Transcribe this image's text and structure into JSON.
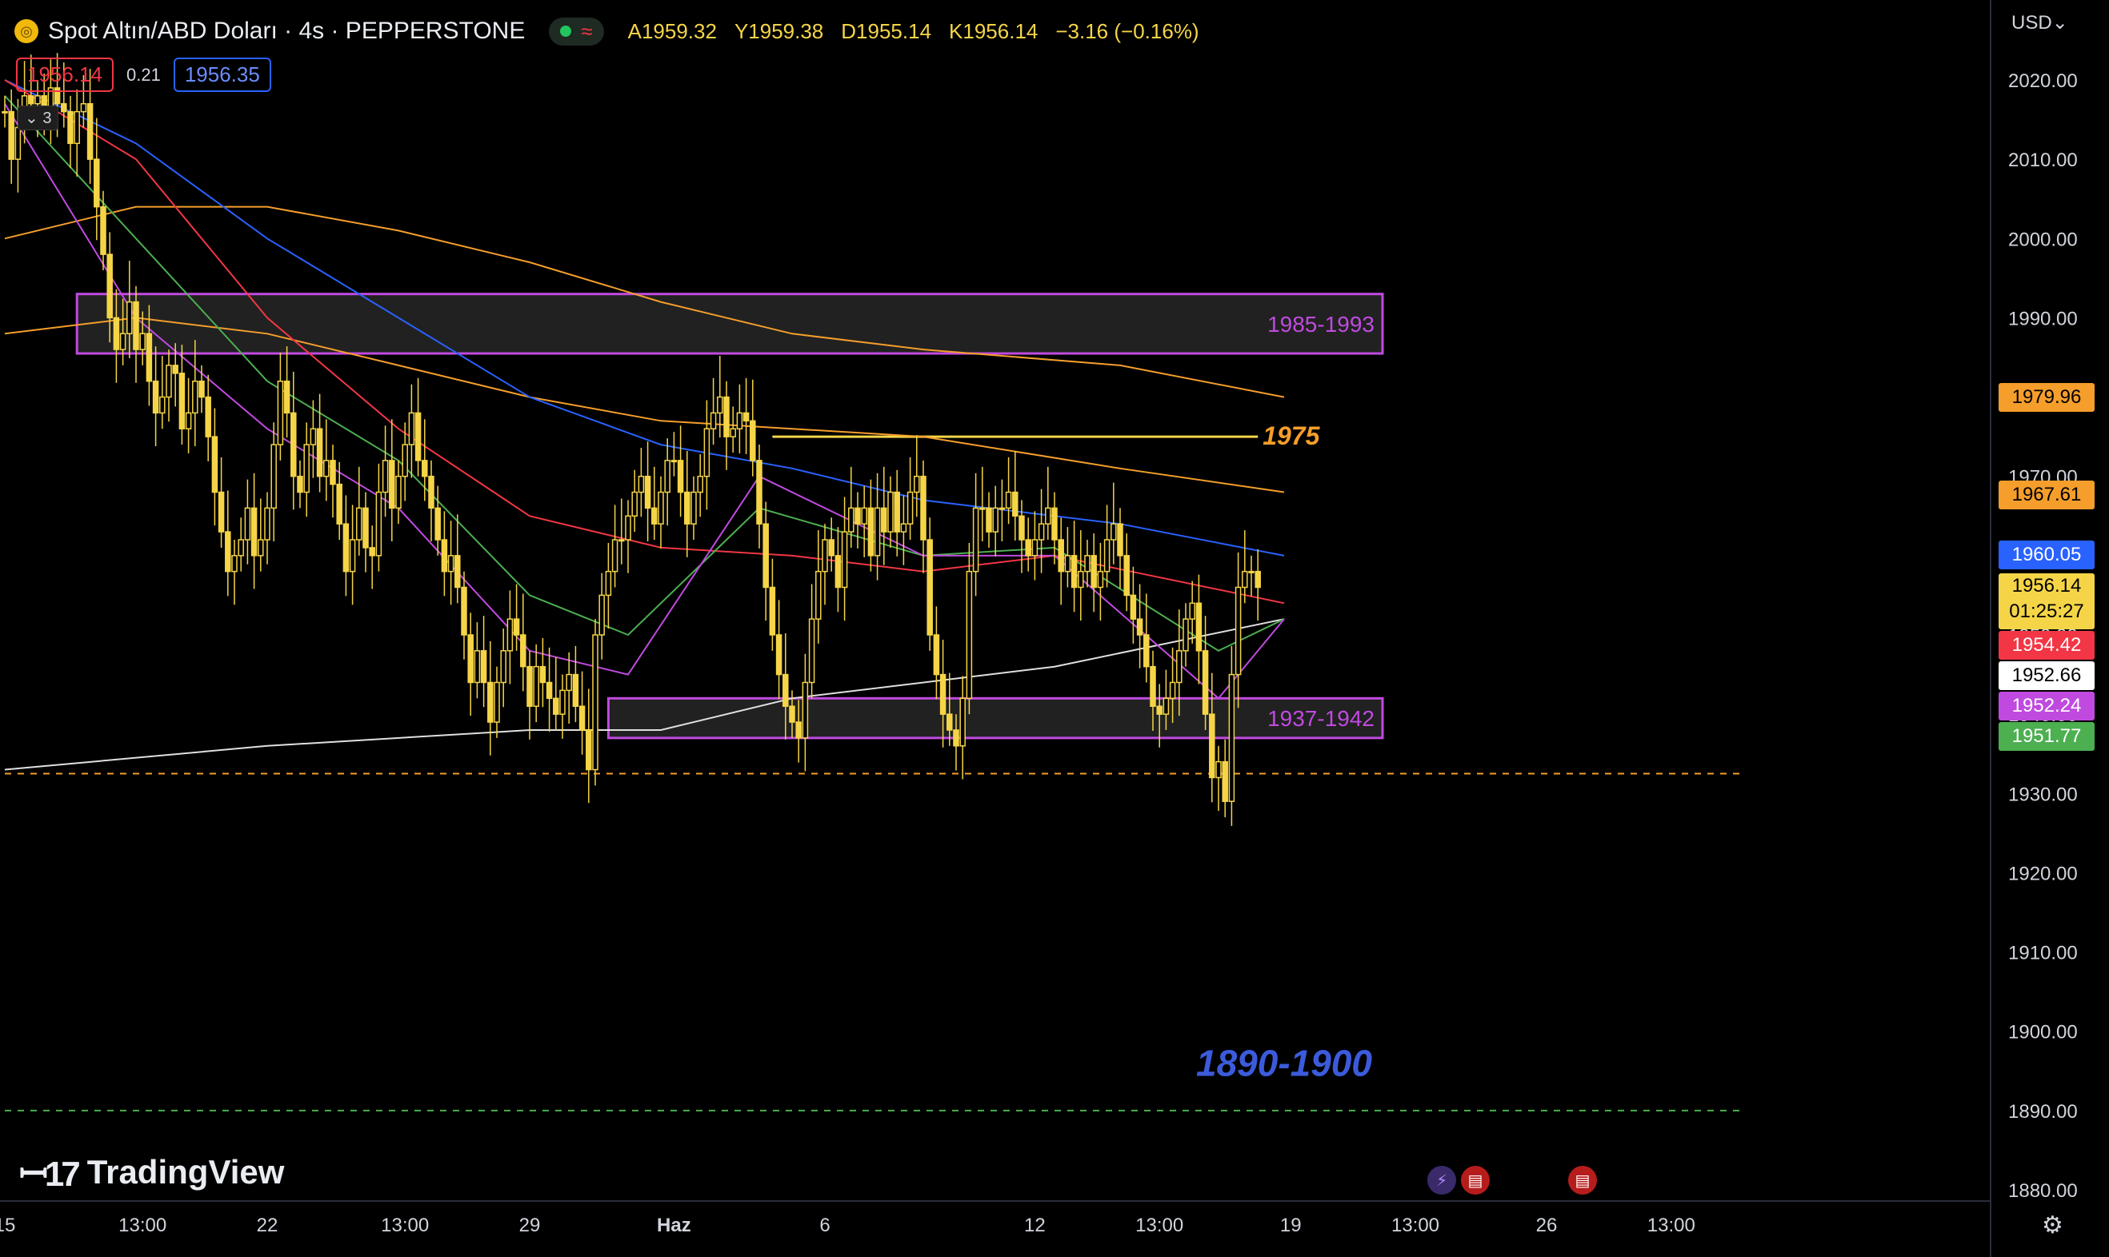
{
  "header": {
    "symbol": "Spot Altın/ABD Doları · 4s · PEPPERSTONE",
    "ohlc": [
      {
        "k": "A",
        "v": "1959.32"
      },
      {
        "k": "Y",
        "v": "1959.38"
      },
      {
        "k": "D",
        "v": "1955.14"
      },
      {
        "k": "K",
        "v": "1956.14"
      }
    ],
    "change": "−3.16 (−0.16%)",
    "bid": "1956.14",
    "spread": "0.21",
    "ask": "1956.35",
    "indicator_count": "3",
    "currency": "USD"
  },
  "brand": "TradingView",
  "price_labels": [
    {
      "value": 1979.96,
      "text": "1979.96",
      "bg": "#f59e2b",
      "fg": "#000000"
    },
    {
      "value": 1967.61,
      "text": "1967.61",
      "bg": "#f59e2b",
      "fg": "#000000"
    },
    {
      "value": 1960.05,
      "text": "1960.05",
      "bg": "#2962ff",
      "fg": "#ffffff"
    },
    {
      "value": 1956.14,
      "text": "1956.14",
      "sub": "01:25:27",
      "bg": "#f5d547",
      "fg": "#000000"
    },
    {
      "value": 1954.42,
      "text": "1954.42",
      "bg": "#f23645",
      "fg": "#ffffff"
    },
    {
      "value": 1952.66,
      "text": "1952.66",
      "bg": "#ffffff",
      "fg": "#000000"
    },
    {
      "value": 1952.24,
      "text": "1952.24",
      "bg": "#c04ae0",
      "fg": "#ffffff"
    },
    {
      "value": 1951.77,
      "text": "1951.77",
      "bg": "#4caf50",
      "fg": "#ffffff"
    }
  ],
  "colors": {
    "candle": "#f5d547",
    "zone_border": "#c04ae0",
    "ema_blue": "#2962ff",
    "ema_red": "#f23645",
    "ema_green": "#4caf50",
    "ema_purple": "#c04ae0",
    "ema_orange": "#f59e2b",
    "ema_white": "#e0e0e0",
    "target": "#3b5bdb"
  },
  "icons": [
    "gold-coin-icon",
    "market-open-dot-icon",
    "wave-icon",
    "chevron-down-icon",
    "settings-icon",
    "flash-event-icon",
    "us-flag-icon"
  ],
  "chart_data": {
    "type": "candlestick",
    "timeframe": "4s",
    "ylim": [
      1878,
      2025
    ],
    "y_ticks": [
      1880,
      1890,
      1900,
      1910,
      1920,
      1930,
      1940,
      1950,
      1960,
      1970,
      1980,
      1990,
      2000,
      2010,
      2020
    ],
    "y_tick_labels": [
      "1880.00",
      "1890.00",
      "1900.00",
      "1910.00",
      "1920.00",
      "1930.00",
      "1940.00",
      "1950.00",
      "1960.00",
      "1970.00",
      "1980.00",
      "1990.00",
      "2000.00",
      "2010.00",
      "2020.00"
    ],
    "x_ticks": [
      {
        "label": "15",
        "bar": 0
      },
      {
        "label": "13:00",
        "bar": 21
      },
      {
        "label": "22",
        "bar": 40
      },
      {
        "label": "13:00",
        "bar": 61
      },
      {
        "label": "29",
        "bar": 80
      },
      {
        "label": "Haz",
        "bar": 102
      },
      {
        "label": "6",
        "bar": 125
      },
      {
        "label": "12",
        "bar": 157
      },
      {
        "label": "13:00",
        "bar": 176
      },
      {
        "label": "19",
        "bar": 196
      },
      {
        "label": "13:00",
        "bar": 215
      },
      {
        "label": "26",
        "bar": 235
      },
      {
        "label": "13:00",
        "bar": 254
      }
    ],
    "closes": [
      2016,
      2010,
      2014,
      2018,
      2017,
      2018,
      2015,
      2019,
      2017,
      2016,
      2012,
      2016,
      2017,
      2010,
      2004,
      1998,
      1990,
      1986,
      1988,
      1992,
      1986,
      1988,
      1982,
      1978,
      1980,
      1984,
      1983,
      1976,
      1978,
      1982,
      1980,
      1975,
      1968,
      1963,
      1958,
      1960,
      1962,
      1966,
      1960,
      1962,
      1966,
      1974,
      1982,
      1978,
      1970,
      1968,
      1974,
      1976,
      1970,
      1972,
      1969,
      1964,
      1958,
      1962,
      1966,
      1961,
      1960,
      1968,
      1972,
      1966,
      1970,
      1974,
      1978,
      1972,
      1970,
      1966,
      1962,
      1958,
      1960,
      1956,
      1950,
      1944,
      1948,
      1944,
      1939,
      1944,
      1948,
      1952,
      1950,
      1946,
      1941,
      1946,
      1944,
      1942,
      1940,
      1943,
      1945,
      1941,
      1938,
      1933,
      1950,
      1955,
      1958,
      1962,
      1962,
      1965,
      1968,
      1970,
      1966,
      1964,
      1968,
      1972,
      1972,
      1968,
      1964,
      1968,
      1970,
      1976,
      1978,
      1980,
      1975,
      1976,
      1978,
      1977,
      1972,
      1964,
      1956,
      1950,
      1945,
      1941,
      1939,
      1937,
      1944,
      1952,
      1958,
      1962,
      1960,
      1956,
      1963,
      1966,
      1964,
      1966,
      1960,
      1966,
      1963,
      1968,
      1963,
      1964,
      1968,
      1970,
      1962,
      1950,
      1945,
      1940,
      1938,
      1936,
      1942,
      1958,
      1966,
      1966,
      1963,
      1966,
      1966,
      1968,
      1965,
      1962,
      1960,
      1962,
      1964,
      1966,
      1962,
      1958,
      1960,
      1956,
      1958,
      1960,
      1956,
      1958,
      1962,
      1964,
      1960,
      1955,
      1952,
      1950,
      1946,
      1941,
      1940,
      1942,
      1944,
      1948,
      1952,
      1954,
      1948,
      1940,
      1932,
      1934,
      1929,
      1945,
      1956,
      1958,
      1958,
      1956
    ],
    "series": [
      {
        "name": "",
        "color": "#e0e0e0",
        "points": [
          [
            0,
            1933
          ],
          [
            40,
            1936
          ],
          [
            80,
            1938
          ],
          [
            100,
            1938
          ],
          [
            120,
            1942
          ],
          [
            160,
            1946
          ],
          [
            195,
            1952
          ]
        ]
      },
      {
        "name": "",
        "color": "#f59e2b",
        "points": [
          [
            0,
            1988
          ],
          [
            20,
            1990
          ],
          [
            40,
            1988
          ],
          [
            60,
            1984
          ],
          [
            80,
            1980
          ],
          [
            100,
            1977
          ],
          [
            120,
            1976
          ],
          [
            140,
            1975
          ],
          [
            170,
            1971
          ],
          [
            195,
            1968
          ]
        ]
      },
      {
        "name": "",
        "color": "#f59e2b",
        "points": [
          [
            0,
            2000
          ],
          [
            20,
            2004
          ],
          [
            40,
            2004
          ],
          [
            60,
            2001
          ],
          [
            80,
            1997
          ],
          [
            100,
            1992
          ],
          [
            120,
            1988
          ],
          [
            140,
            1986
          ],
          [
            170,
            1984
          ],
          [
            195,
            1980
          ]
        ]
      },
      {
        "name": "",
        "color": "#2962ff",
        "points": [
          [
            0,
            2020
          ],
          [
            20,
            2012
          ],
          [
            40,
            2000
          ],
          [
            60,
            1990
          ],
          [
            80,
            1980
          ],
          [
            100,
            1974
          ],
          [
            120,
            1971
          ],
          [
            140,
            1967
          ],
          [
            170,
            1964
          ],
          [
            195,
            1960
          ]
        ]
      },
      {
        "name": "",
        "color": "#f23645",
        "points": [
          [
            0,
            2020
          ],
          [
            20,
            2010
          ],
          [
            40,
            1990
          ],
          [
            60,
            1976
          ],
          [
            80,
            1965
          ],
          [
            100,
            1961
          ],
          [
            120,
            1960
          ],
          [
            140,
            1958
          ],
          [
            160,
            1960
          ],
          [
            195,
            1954
          ]
        ]
      },
      {
        "name": "",
        "color": "#4caf50",
        "points": [
          [
            0,
            2018
          ],
          [
            20,
            2000
          ],
          [
            40,
            1982
          ],
          [
            60,
            1972
          ],
          [
            80,
            1955
          ],
          [
            95,
            1950
          ],
          [
            115,
            1966
          ],
          [
            140,
            1960
          ],
          [
            160,
            1961
          ],
          [
            185,
            1948
          ],
          [
            195,
            1952
          ]
        ]
      },
      {
        "name": "",
        "color": "#c04ae0",
        "points": [
          [
            0,
            2017
          ],
          [
            20,
            1990
          ],
          [
            40,
            1976
          ],
          [
            60,
            1966
          ],
          [
            80,
            1948
          ],
          [
            95,
            1945
          ],
          [
            115,
            1970
          ],
          [
            140,
            1960
          ],
          [
            160,
            1960
          ],
          [
            185,
            1942
          ],
          [
            195,
            1952
          ]
        ]
      }
    ],
    "zones": [
      {
        "label": "1985-1993",
        "from_bar": 11,
        "to_bar": 210,
        "y_low": 1985.5,
        "y_high": 1993
      },
      {
        "label": "1937-1942",
        "from_bar": 92,
        "to_bar": 210,
        "y_low": 1937,
        "y_high": 1942
      }
    ],
    "hlines": [
      {
        "label": "1975",
        "from_bar": 117,
        "to_bar": 191,
        "y": 1975
      },
      {
        "label": "",
        "from_bar": 0,
        "to_bar": 265,
        "y": 1932.5,
        "style": "dashed-orange"
      },
      {
        "label": "",
        "from_bar": 0,
        "to_bar": 265,
        "y": 1890,
        "style": "dashed-green"
      }
    ],
    "annotations": [
      {
        "text": "1890-1900",
        "bar": 195,
        "y": 1896
      }
    ]
  }
}
